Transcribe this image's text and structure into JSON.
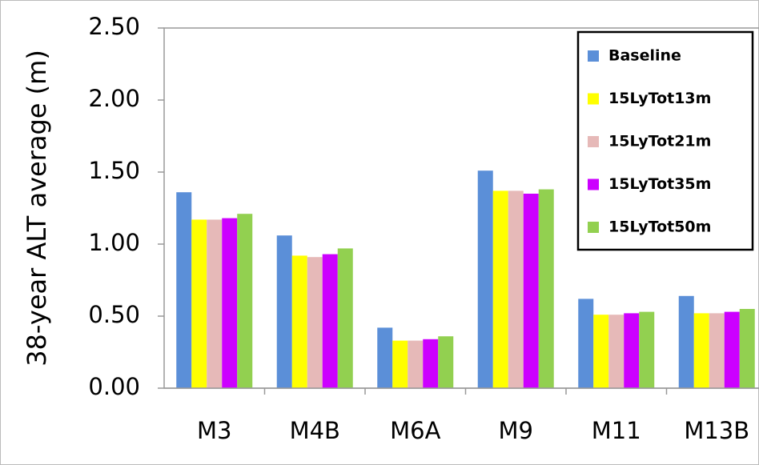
{
  "chart_data": {
    "type": "bar",
    "y_label": "38-year ALT average (m)",
    "categories": [
      "M3",
      "M4B",
      "M6A",
      "M9",
      "M11",
      "M13B"
    ],
    "series": [
      {
        "name": "Baseline",
        "color": "#5b8fd8",
        "values": [
          1.36,
          1.06,
          0.42,
          1.51,
          0.62,
          0.64
        ]
      },
      {
        "name": "15LyTot13m",
        "color": "#ffff00",
        "values": [
          1.17,
          0.92,
          0.33,
          1.37,
          0.51,
          0.52
        ]
      },
      {
        "name": "15LyTot21m",
        "color": "#e6b9b8",
        "values": [
          1.17,
          0.91,
          0.33,
          1.37,
          0.51,
          0.52
        ]
      },
      {
        "name": "15LyTot35m",
        "color": "#cc00ff",
        "values": [
          1.18,
          0.93,
          0.34,
          1.35,
          0.52,
          0.53
        ]
      },
      {
        "name": "15LyTot50m",
        "color": "#92d050",
        "values": [
          1.21,
          0.97,
          0.36,
          1.38,
          0.53,
          0.55
        ]
      }
    ],
    "ylim": [
      0,
      2.5
    ],
    "yticks": [
      {
        "value": 0,
        "label": "0.00"
      },
      {
        "value": 0.5,
        "label": "0.50"
      },
      {
        "value": 1,
        "label": "1.00"
      },
      {
        "value": 1.5,
        "label": "1.50"
      },
      {
        "value": 2,
        "label": "2.00"
      },
      {
        "value": 2.5,
        "label": "2.50"
      }
    ],
    "grid": false,
    "legend": "upper-right"
  }
}
